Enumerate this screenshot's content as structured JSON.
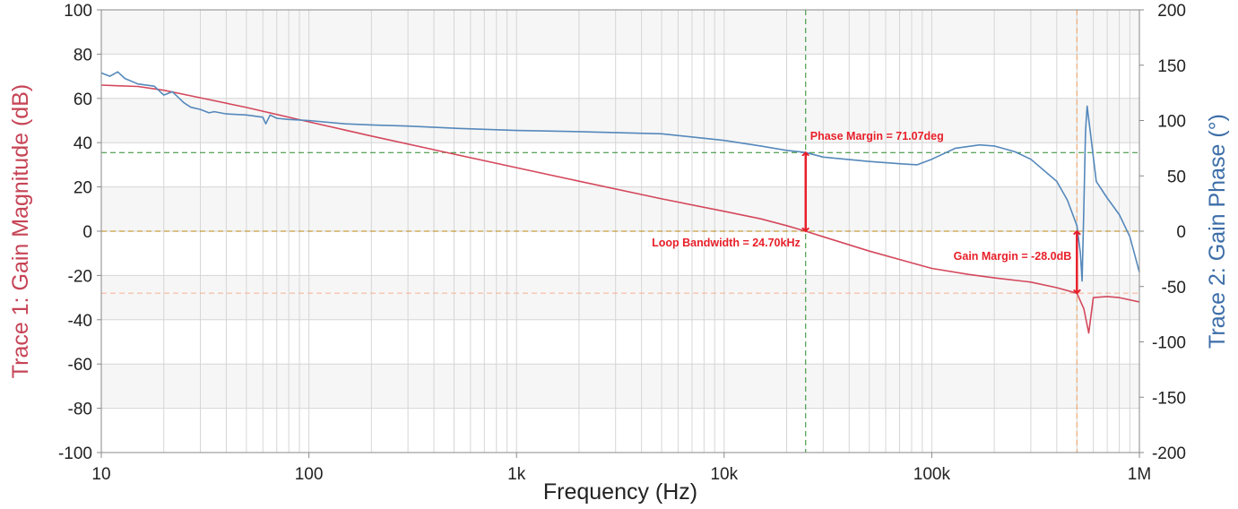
{
  "chart_data": {
    "type": "line",
    "xlabel": "Frequency (Hz)",
    "xscale": "log",
    "xlim": [
      10,
      1000000
    ],
    "x_ticks": [
      {
        "value": 10,
        "label": "10"
      },
      {
        "value": 100,
        "label": "100"
      },
      {
        "value": 1000,
        "label": "1k"
      },
      {
        "value": 10000,
        "label": "10k"
      },
      {
        "value": 100000,
        "label": "100k"
      },
      {
        "value": 1000000,
        "label": "1M"
      }
    ],
    "y1": {
      "label": "Trace 1: Gain Magnitude (dB)",
      "lim": [
        -100,
        100
      ],
      "ticks": [
        "-100",
        "-80",
        "-60",
        "-40",
        "-20",
        "0",
        "20",
        "40",
        "60",
        "80",
        "100"
      ],
      "color": "#c64456"
    },
    "y2": {
      "label": "Trace 2: Gain Phase (°)",
      "lim": [
        -200,
        200
      ],
      "ticks": [
        "-200",
        "-150",
        "-100",
        "-50",
        "0",
        "50",
        "100",
        "150",
        "200"
      ],
      "color": "#3d6ea8"
    },
    "series": [
      {
        "name": "Trace 1: Gain Magnitude",
        "axis": "y1",
        "color": "#d4485c",
        "points": [
          [
            10,
            66
          ],
          [
            15,
            65.4
          ],
          [
            20,
            63.7
          ],
          [
            30,
            60.3
          ],
          [
            50,
            55.9
          ],
          [
            100,
            49.4
          ],
          [
            200,
            43
          ],
          [
            500,
            34.8
          ],
          [
            1000,
            28.7
          ],
          [
            2000,
            22.6
          ],
          [
            5000,
            14.6
          ],
          [
            10000,
            9
          ],
          [
            15000,
            5.6
          ],
          [
            20000,
            2.5
          ],
          [
            24700,
            0
          ],
          [
            30000,
            -2.5
          ],
          [
            50000,
            -9
          ],
          [
            100000,
            -16.8
          ],
          [
            150000,
            -19.5
          ],
          [
            200000,
            -21.1
          ],
          [
            300000,
            -23
          ],
          [
            400000,
            -25.5
          ],
          [
            500000,
            -28
          ],
          [
            540000,
            -35
          ],
          [
            570000,
            -46
          ],
          [
            600000,
            -30
          ],
          [
            700000,
            -29.5
          ],
          [
            800000,
            -30
          ],
          [
            1000000,
            -32
          ]
        ]
      },
      {
        "name": "Trace 2: Gain Phase",
        "axis": "y2",
        "color": "#5588bb",
        "points": [
          [
            10,
            143
          ],
          [
            11,
            140
          ],
          [
            12,
            144
          ],
          [
            13,
            138
          ],
          [
            15,
            133
          ],
          [
            18,
            131
          ],
          [
            20,
            123
          ],
          [
            22,
            126
          ],
          [
            25,
            116
          ],
          [
            27,
            112
          ],
          [
            30,
            110
          ],
          [
            33,
            107
          ],
          [
            35,
            108
          ],
          [
            40,
            106
          ],
          [
            50,
            105
          ],
          [
            60,
            103
          ],
          [
            62,
            97
          ],
          [
            65,
            105
          ],
          [
            70,
            102
          ],
          [
            80,
            101
          ],
          [
            100,
            100
          ],
          [
            150,
            97
          ],
          [
            200,
            96
          ],
          [
            300,
            95
          ],
          [
            500,
            93
          ],
          [
            1000,
            91
          ],
          [
            2000,
            90
          ],
          [
            5000,
            88
          ],
          [
            10000,
            82
          ],
          [
            15000,
            77
          ],
          [
            20000,
            73
          ],
          [
            24700,
            71.07
          ],
          [
            30000,
            67
          ],
          [
            50000,
            63
          ],
          [
            70000,
            61
          ],
          [
            85000,
            60
          ],
          [
            100000,
            65
          ],
          [
            130000,
            75
          ],
          [
            170000,
            78
          ],
          [
            200000,
            77
          ],
          [
            250000,
            72
          ],
          [
            300000,
            65
          ],
          [
            400000,
            45
          ],
          [
            450000,
            28
          ],
          [
            500000,
            5
          ],
          [
            520000,
            -20
          ],
          [
            530000,
            -45
          ],
          [
            540000,
            20
          ],
          [
            550000,
            90
          ],
          [
            560000,
            113
          ],
          [
            580000,
            90
          ],
          [
            620000,
            45
          ],
          [
            700000,
            30
          ],
          [
            800000,
            15
          ],
          [
            900000,
            -5
          ],
          [
            1000000,
            -37
          ]
        ]
      }
    ],
    "reference_lines": [
      {
        "name": "loop-bandwidth-vline",
        "orientation": "vertical",
        "x": 24700,
        "color": "#2a8a2a"
      },
      {
        "name": "phase-margin-hline",
        "orientation": "horizontal",
        "axis": "y2",
        "y": 71.07,
        "color": "#2a8a2a"
      },
      {
        "name": "zero-db-hline",
        "orientation": "horizontal",
        "axis": "y1",
        "y": 0,
        "color": "#b8860b"
      },
      {
        "name": "gain-margin-vline",
        "orientation": "vertical",
        "x": 500000,
        "color": "#f0a060"
      },
      {
        "name": "gain-margin-hline",
        "orientation": "horizontal",
        "axis": "y1",
        "y": -28,
        "color": "#f5b090"
      }
    ],
    "annotations": [
      {
        "name": "phase-margin-label",
        "text": "Phase Margin = 71.07deg",
        "x": 24700,
        "axis": "y2",
        "y": 71.07
      },
      {
        "name": "loop-bandwidth-label",
        "text": "Loop Bandwidth = 24.70kHz",
        "x": 24700,
        "axis": "y1",
        "y": 0
      },
      {
        "name": "gain-margin-label",
        "text": "Gain Margin = -28.0dB",
        "x": 500000,
        "axis": "y1",
        "y": -28
      }
    ],
    "arrows": [
      {
        "name": "phase-margin-arrow",
        "x": 24700,
        "from": {
          "axis": "y1",
          "y": 0
        },
        "to": {
          "axis": "y2",
          "y": 71.07
        }
      },
      {
        "name": "gain-margin-arrow",
        "x": 500000,
        "from": {
          "axis": "y1",
          "y": 0
        },
        "to": {
          "axis": "y1",
          "y": -28
        }
      }
    ],
    "grid": true,
    "arrow_color": "#e8202a",
    "band_color": "#f6f6f6",
    "grid_color": "#d6d6d6",
    "axis_color": "#888888"
  }
}
